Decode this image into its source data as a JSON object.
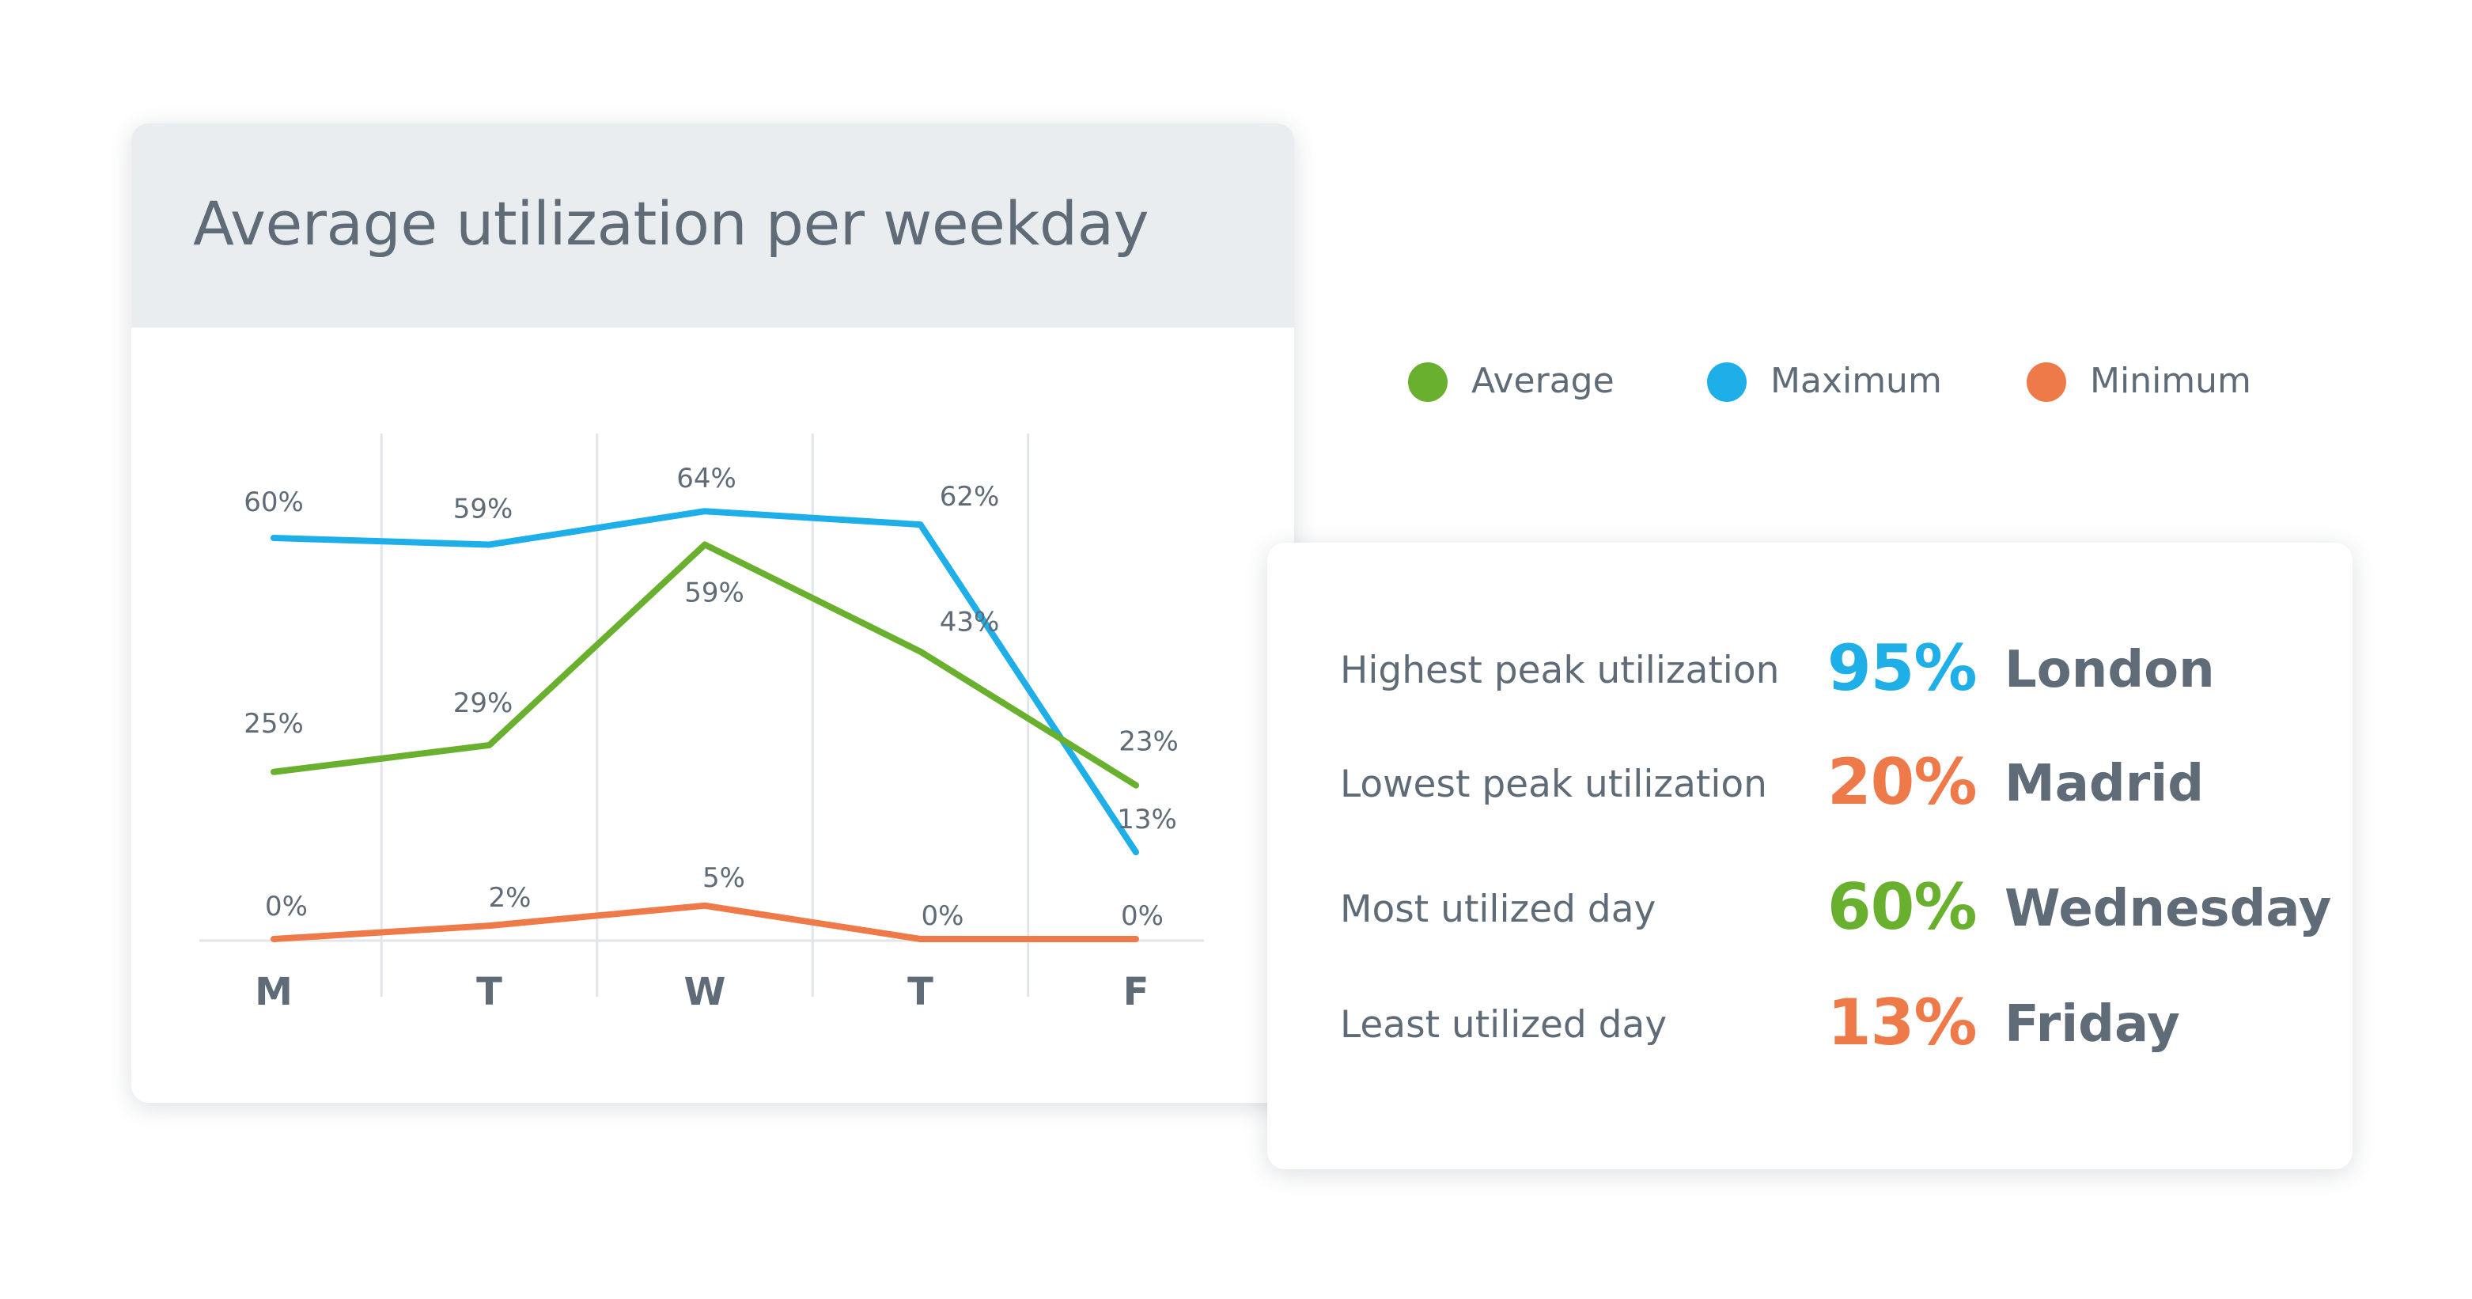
{
  "chart_data": {
    "type": "line",
    "title": "Average utilization per weekday",
    "categories": [
      "M",
      "T",
      "W",
      "T",
      "F"
    ],
    "series": [
      {
        "name": "Maximum",
        "values": [
          60,
          59,
          64,
          62,
          13
        ],
        "labels": [
          "60%",
          "59%",
          "64%",
          "62%",
          "13%"
        ],
        "color": "#1eaee8"
      },
      {
        "name": "Average",
        "values": [
          25,
          29,
          59,
          43,
          23
        ],
        "labels": [
          "25%",
          "29%",
          "59%",
          "43%",
          "23%"
        ],
        "color": "#6ab02f"
      },
      {
        "name": "Minimum",
        "values": [
          0,
          2,
          5,
          0,
          0
        ],
        "labels": [
          "0%",
          "2%",
          "5%",
          "0%",
          "0%"
        ],
        "color": "#ee7a4a"
      }
    ],
    "grid": "vertical",
    "legend": "right"
  },
  "legend": [
    {
      "label": "Average",
      "color": "#6ab02f"
    },
    {
      "label": "Maximum",
      "color": "#1eaee8"
    },
    {
      "label": "Minimum",
      "color": "#ee7a4a"
    }
  ],
  "stats": [
    {
      "label": "Highest peak utilization",
      "value": "95%",
      "name": "London",
      "color": "#1eaee8"
    },
    {
      "label": "Lowest peak utilization",
      "value": "20%",
      "name": "Madrid",
      "color": "#ee7a4a"
    },
    {
      "label": "Most utilized day",
      "value": "60%",
      "name": "Wednesday",
      "color": "#6ab02f"
    },
    {
      "label": "Least utilized day",
      "value": "13%",
      "name": "Friday",
      "color": "#ee7a4a"
    }
  ]
}
